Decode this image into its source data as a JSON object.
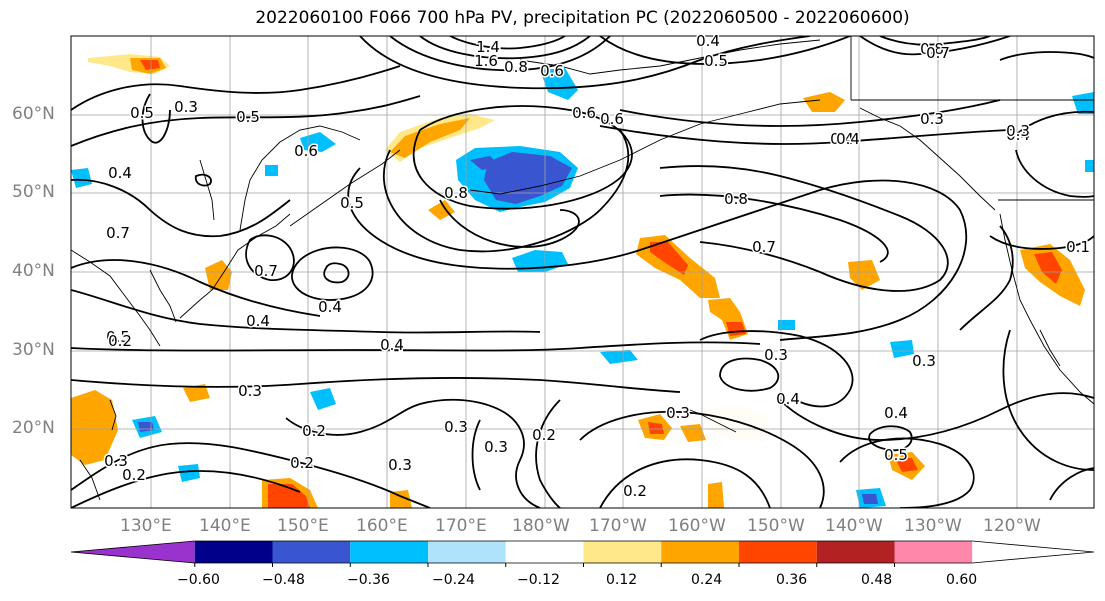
{
  "title": "2022060100 F066 700 hPa PV, precipitation PC (2022060500 - 2022060600)",
  "lat_labels": [
    "60°N",
    "50°N",
    "40°N",
    "30°N",
    "20°N"
  ],
  "lon_labels": [
    "130°E",
    "140°E",
    "150°E",
    "160°E",
    "170°E",
    "180°W",
    "170°W",
    "160°W",
    "150°W",
    "140°W",
    "130°W",
    "120°W"
  ],
  "colorbar": {
    "ticks": [
      "−0.60",
      "−0.48",
      "−0.36",
      "−0.24",
      "−0.12",
      "0.12",
      "0.24",
      "0.36",
      "0.48",
      "0.60"
    ],
    "colors": [
      "#9a32cd",
      "#00008b",
      "#3a55d0",
      "#00bfff",
      "#afe2fb",
      "#ffffff",
      "#ffe88a",
      "#ffa500",
      "#ff4500",
      "#b22222",
      "#ff88aa",
      "#ffffff"
    ]
  },
  "contour_labels": [
    {
      "text": "1.4"
    },
    {
      "text": "1.6"
    },
    {
      "text": "0.8"
    },
    {
      "text": "0.6"
    },
    {
      "text": "0.4"
    },
    {
      "text": "0.5"
    },
    {
      "text": "0.8"
    },
    {
      "text": "0.7"
    },
    {
      "text": "0.6"
    },
    {
      "text": "0.5"
    },
    {
      "text": "0.3"
    },
    {
      "text": "0.5"
    },
    {
      "text": "0.6"
    },
    {
      "text": "0.4"
    },
    {
      "text": "0.5"
    },
    {
      "text": "0.7"
    },
    {
      "text": "0.8"
    },
    {
      "text": "0.4"
    },
    {
      "text": "0.8"
    },
    {
      "text": "0.7"
    },
    {
      "text": "0.3"
    },
    {
      "text": "0.4"
    },
    {
      "text": "0.1"
    },
    {
      "text": "0.7"
    },
    {
      "text": "0.4"
    },
    {
      "text": "0.4"
    },
    {
      "text": "0.4"
    },
    {
      "text": "0.5"
    },
    {
      "text": "0.3"
    },
    {
      "text": "0.2"
    },
    {
      "text": "0.3"
    },
    {
      "text": "0.3"
    },
    {
      "text": "0.2"
    },
    {
      "text": "0.3"
    },
    {
      "text": "0.2"
    },
    {
      "text": "0.3"
    },
    {
      "text": "0.3"
    },
    {
      "text": "0.4"
    },
    {
      "text": "0.3"
    },
    {
      "text": "0.4"
    },
    {
      "text": "0.5"
    },
    {
      "text": "0.2"
    },
    {
      "text": "0.2"
    },
    {
      "text": "0.2"
    },
    {
      "text": "0.3"
    },
    {
      "text": "0.6"
    },
    {
      "text": "0.3"
    },
    {
      "text": "0.4"
    }
  ]
}
